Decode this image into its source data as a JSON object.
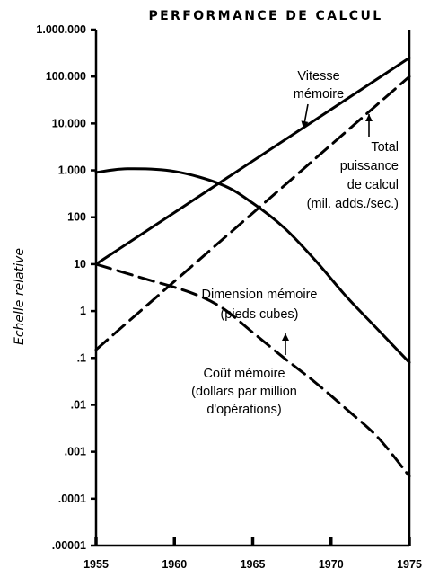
{
  "chart_data": {
    "type": "line",
    "title": "PERFORMANCE DE CALCUL",
    "ylabel": "Echelle relative",
    "xlabel": "",
    "y_scale": "log",
    "x_range": [
      1955,
      1975
    ],
    "y_range": [
      1e-05,
      1000000
    ],
    "x_ticks": [
      {
        "value": 1955,
        "label": "1955"
      },
      {
        "value": 1960,
        "label": "1960"
      },
      {
        "value": 1965,
        "label": "1965"
      },
      {
        "value": 1970,
        "label": "1970"
      },
      {
        "value": 1975,
        "label": "1975"
      }
    ],
    "y_ticks": [
      {
        "value": 1000000,
        "label": "1.000.000"
      },
      {
        "value": 100000,
        "label": "100.000"
      },
      {
        "value": 10000,
        "label": "10.000"
      },
      {
        "value": 1000,
        "label": "1.000"
      },
      {
        "value": 100,
        "label": "100"
      },
      {
        "value": 10,
        "label": "10"
      },
      {
        "value": 1,
        "label": "1"
      },
      {
        "value": 0.1,
        "label": ".1"
      },
      {
        "value": 0.01,
        "label": ".01"
      },
      {
        "value": 0.001,
        "label": ".001"
      },
      {
        "value": 0.0001,
        "label": ".0001"
      },
      {
        "value": 1e-05,
        "label": ".00001"
      }
    ],
    "grid": false,
    "legend": "none",
    "series": [
      {
        "lines": [
          "Vitesse",
          "mémoire"
        ],
        "style": "solid",
        "x": [
          1955,
          1975
        ],
        "y": [
          10,
          250000
        ]
      },
      {
        "lines": [
          "Total",
          "puissance",
          "de calcul",
          "(mil. adds./sec.)"
        ],
        "style": "dashed",
        "x": [
          1955,
          1975
        ],
        "y": [
          0.15,
          100000
        ]
      },
      {
        "lines": [
          "Dimension mémoire",
          "(pieds cubes)"
        ],
        "style": "solid",
        "x": [
          1955,
          1957,
          1960,
          1963,
          1965,
          1967,
          1969,
          1971,
          1973,
          1975
        ],
        "y": [
          900,
          1080,
          950,
          500,
          200,
          60,
          12,
          2,
          0.4,
          0.08
        ]
      },
      {
        "lines": [
          "Coût mémoire",
          "(dollars par million",
          "d'opérations)"
        ],
        "style": "dashed",
        "x": [
          1955,
          1958,
          1961,
          1963,
          1965,
          1967,
          1969,
          1971,
          1973,
          1975
        ],
        "y": [
          10,
          5,
          2.5,
          1.2,
          0.35,
          0.1,
          0.03,
          0.008,
          0.002,
          0.0003
        ]
      }
    ]
  }
}
